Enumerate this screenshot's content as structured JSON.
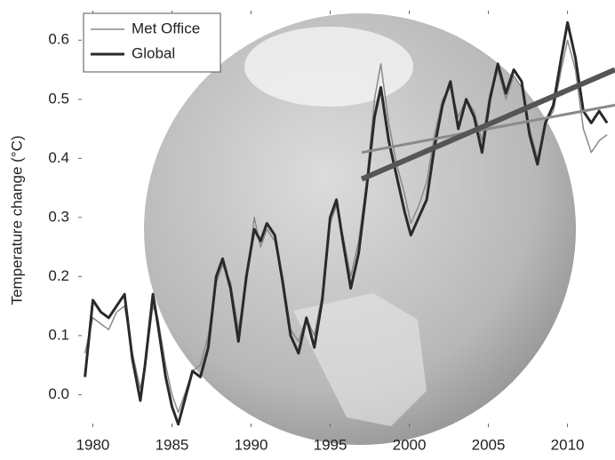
{
  "chart_data": {
    "type": "line",
    "y_label": "Temperature change (°C)",
    "xlim": [
      1979.3,
      2013
    ],
    "xticks": [
      1980,
      1985,
      1990,
      1995,
      2000,
      2005,
      2010
    ],
    "ylim": [
      -0.055,
      0.65
    ],
    "yticks": [
      {
        "value": 0,
        "label": "0.0"
      },
      0.1,
      0.2,
      0.3,
      0.4,
      0.5,
      0.6
    ],
    "legend": "top-left",
    "x": [
      1979.5,
      1980.0,
      1980.5,
      1981.0,
      1981.5,
      1982.0,
      1982.5,
      1983.0,
      1983.3,
      1983.8,
      1984.1,
      1984.6,
      1985.0,
      1985.4,
      1985.8,
      1986.3,
      1986.8,
      1987.3,
      1987.8,
      1988.2,
      1988.7,
      1989.2,
      1989.7,
      1990.2,
      1990.6,
      1991.0,
      1991.5,
      1992.0,
      1992.5,
      1993.0,
      1993.5,
      1994.0,
      1994.5,
      1995.0,
      1995.4,
      1995.8,
      1996.3,
      1996.8,
      1997.3,
      1997.8,
      1998.2,
      1998.7,
      1999.2,
      1999.7,
      2000.1,
      2000.6,
      2001.1,
      2001.6,
      2002.1,
      2002.6,
      2003.1,
      2003.6,
      2004.1,
      2004.6,
      2005.1,
      2005.6,
      2006.1,
      2006.6,
      2007.1,
      2007.6,
      2008.1,
      2008.6,
      2009.1,
      2009.6,
      2010.0,
      2010.5,
      2011.0,
      2011.5,
      2012.0,
      2012.5
    ],
    "series": [
      {
        "name": "Met Office",
        "color": "#8a8a8a",
        "width": 1.5,
        "values": [
          0.07,
          0.13,
          0.12,
          0.11,
          0.14,
          0.15,
          0.07,
          0.01,
          0.05,
          0.15,
          0.13,
          0.05,
          0.0,
          -0.03,
          0.0,
          0.04,
          0.05,
          0.1,
          0.19,
          0.22,
          0.19,
          0.11,
          0.19,
          0.3,
          0.25,
          0.28,
          0.26,
          0.2,
          0.11,
          0.09,
          0.13,
          0.1,
          0.17,
          0.29,
          0.32,
          0.27,
          0.2,
          0.26,
          0.36,
          0.5,
          0.56,
          0.46,
          0.39,
          0.34,
          0.29,
          0.32,
          0.36,
          0.44,
          0.5,
          0.52,
          0.47,
          0.5,
          0.48,
          0.43,
          0.51,
          0.55,
          0.5,
          0.54,
          0.52,
          0.45,
          0.4,
          0.46,
          0.48,
          0.55,
          0.6,
          0.55,
          0.45,
          0.41,
          0.43,
          0.44
        ]
      },
      {
        "name": "Global",
        "color": "#2a2a2a",
        "width": 3,
        "values": [
          0.03,
          0.16,
          0.14,
          0.13,
          0.15,
          0.17,
          0.06,
          -0.01,
          0.05,
          0.17,
          0.12,
          0.03,
          -0.02,
          -0.05,
          -0.01,
          0.04,
          0.03,
          0.08,
          0.2,
          0.23,
          0.18,
          0.09,
          0.2,
          0.28,
          0.26,
          0.29,
          0.27,
          0.19,
          0.1,
          0.07,
          0.13,
          0.08,
          0.16,
          0.3,
          0.33,
          0.26,
          0.18,
          0.24,
          0.35,
          0.47,
          0.52,
          0.43,
          0.37,
          0.31,
          0.27,
          0.3,
          0.33,
          0.42,
          0.49,
          0.53,
          0.45,
          0.5,
          0.47,
          0.41,
          0.5,
          0.56,
          0.51,
          0.55,
          0.53,
          0.44,
          0.39,
          0.46,
          0.49,
          0.57,
          0.63,
          0.57,
          0.48,
          0.46,
          0.48,
          0.46
        ]
      }
    ],
    "trend_lines": [
      {
        "color": "#8a8a8a",
        "width": 3,
        "x": [
          1997,
          2013
        ],
        "values": [
          0.41,
          0.49
        ]
      },
      {
        "color": "#555555",
        "width": 6,
        "x": [
          1997,
          2013
        ],
        "values": [
          0.365,
          0.55
        ]
      }
    ]
  }
}
